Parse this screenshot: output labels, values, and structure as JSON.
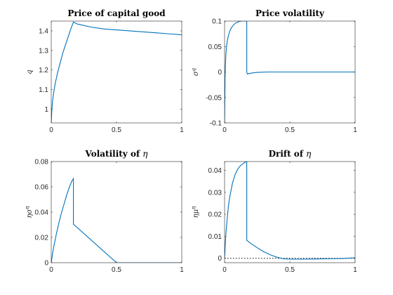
{
  "chart_data": [
    {
      "type": "line",
      "title": "Price of capital good",
      "ylabel": "q",
      "xlim": [
        0,
        1
      ],
      "ylim": [
        0.93,
        1.45
      ],
      "xticks": [
        "0",
        "0.5",
        "1"
      ],
      "xtick_values": [
        0,
        0.5,
        1
      ],
      "yticks": [
        "1",
        "1.1",
        "1.2",
        "1.3",
        "1.4"
      ],
      "ytick_values": [
        1,
        1.1,
        1.2,
        1.3,
        1.4
      ],
      "grid": false,
      "series": [
        {
          "x": [
            0,
            0.005,
            0.01,
            0.02,
            0.03,
            0.05,
            0.07,
            0.09,
            0.11,
            0.13,
            0.15,
            0.17,
            0.2,
            0.3,
            0.4,
            0.5,
            0.6,
            0.7,
            0.8,
            0.9,
            1.0
          ],
          "y": [
            0.93,
            1.0,
            1.04,
            1.09,
            1.13,
            1.19,
            1.24,
            1.29,
            1.33,
            1.37,
            1.41,
            1.445,
            1.435,
            1.42,
            1.41,
            1.405,
            1.4,
            1.395,
            1.39,
            1.385,
            1.38
          ]
        }
      ]
    },
    {
      "type": "line",
      "title": "Price volatility",
      "ylabel": "σ^q",
      "ylabel_base": "σ",
      "ylabel_sup": "q",
      "xlim": [
        0,
        1
      ],
      "ylim": [
        -0.1,
        0.1
      ],
      "xticks": [
        "0",
        "0.5",
        "1"
      ],
      "xtick_values": [
        0,
        0.5,
        1
      ],
      "yticks": [
        "-0.1",
        "-0.05",
        "0",
        "0.05",
        "0.1"
      ],
      "ytick_values": [
        -0.1,
        -0.05,
        0,
        0.05,
        0.1
      ],
      "grid": false,
      "series": [
        {
          "x": [
            0,
            0.002,
            0.004,
            0.006,
            0.01,
            0.015,
            0.02,
            0.03,
            0.04,
            0.05,
            0.07,
            0.09,
            0.11,
            0.13,
            0.17,
            0.17,
            0.175,
            0.19,
            0.21,
            0.24,
            0.28,
            0.33,
            0.4,
            0.5,
            0.6,
            0.8,
            1.0
          ],
          "y": [
            -0.1,
            -0.05,
            -0.01,
            0.01,
            0.035,
            0.05,
            0.06,
            0.072,
            0.08,
            0.086,
            0.093,
            0.097,
            0.099,
            0.1,
            0.1,
            0.0,
            -0.004,
            -0.003,
            -0.002,
            -0.001,
            -0.0005,
            0,
            0,
            0,
            0,
            0,
            0
          ]
        }
      ]
    },
    {
      "type": "line",
      "title": "Volatility of η",
      "title_text": "Volatility of ",
      "title_symbol": "η",
      "ylabel": "ησ^η",
      "ylabel_base": "ησ",
      "ylabel_sup": "η",
      "xlim": [
        0,
        1
      ],
      "ylim": [
        0,
        0.08
      ],
      "xticks": [
        "0",
        "0.5",
        "1"
      ],
      "xtick_values": [
        0,
        0.5,
        1
      ],
      "yticks": [
        "0",
        "0.02",
        "0.04",
        "0.06",
        "0.08"
      ],
      "ytick_values": [
        0,
        0.02,
        0.04,
        0.06,
        0.08
      ],
      "grid": false,
      "series": [
        {
          "x": [
            0,
            0.01,
            0.02,
            0.04,
            0.06,
            0.08,
            0.1,
            0.12,
            0.14,
            0.16,
            0.17,
            0.17,
            0.5,
            0.6,
            0.8,
            1.0
          ],
          "y": [
            0,
            0.007,
            0.013,
            0.023,
            0.032,
            0.04,
            0.047,
            0.054,
            0.06,
            0.065,
            0.0665,
            0.0305,
            0.0,
            0,
            0,
            0
          ]
        }
      ]
    },
    {
      "type": "line",
      "title": "Drift of η",
      "title_text": "Drift of ",
      "title_symbol": "η",
      "ylabel": "ημ^η",
      "ylabel_base": "ημ",
      "ylabel_sup": "η",
      "xlim": [
        0,
        1
      ],
      "ylim": [
        -0.002,
        0.044
      ],
      "xticks": [
        "0",
        "0.5",
        "1"
      ],
      "xtick_values": [
        0,
        0.5,
        1
      ],
      "yticks": [
        "0",
        "0.01",
        "0.02",
        "0.03",
        "0.04"
      ],
      "ytick_values": [
        0,
        0.01,
        0.02,
        0.03,
        0.04
      ],
      "grid": false,
      "reference_line": {
        "y": 0,
        "style": "dotted"
      },
      "series": [
        {
          "x": [
            0,
            0.005,
            0.01,
            0.02,
            0.03,
            0.04,
            0.06,
            0.08,
            0.1,
            0.12,
            0.14,
            0.16,
            0.17,
            0.17,
            0.2,
            0.25,
            0.3,
            0.35,
            0.4,
            0.45,
            0.5,
            0.6,
            0.7,
            0.8,
            0.9,
            1.0
          ],
          "y": [
            0,
            0.006,
            0.011,
            0.018,
            0.024,
            0.028,
            0.034,
            0.038,
            0.0405,
            0.042,
            0.043,
            0.0438,
            0.044,
            0.0082,
            0.0068,
            0.0048,
            0.003,
            0.0016,
            0.0005,
            -0.0002,
            -0.0004,
            -0.0004,
            -0.0003,
            -0.0002,
            -0.0001,
            0.0002
          ]
        }
      ]
    }
  ]
}
